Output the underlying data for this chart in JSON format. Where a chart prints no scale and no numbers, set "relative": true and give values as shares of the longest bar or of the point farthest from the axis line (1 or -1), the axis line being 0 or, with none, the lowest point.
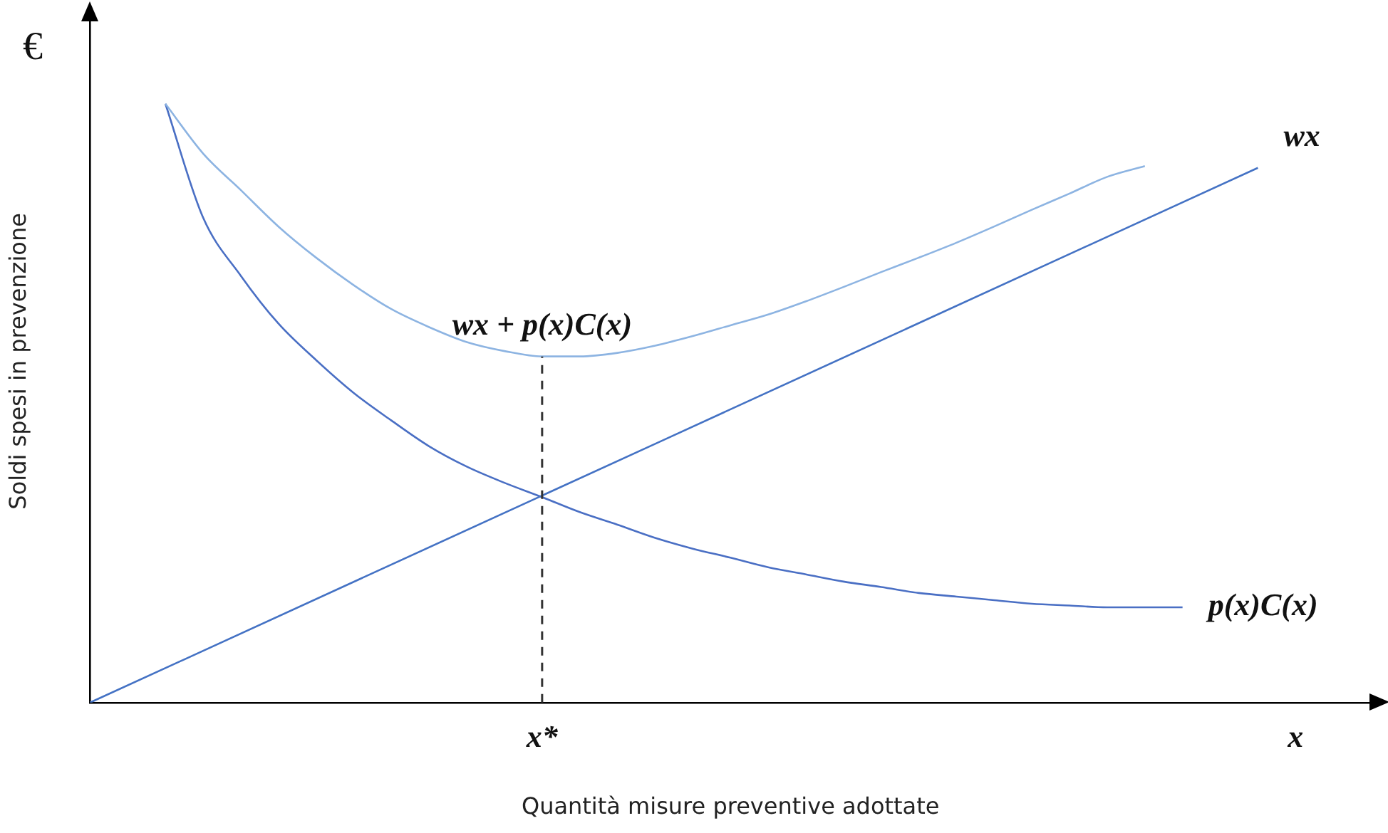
{
  "chart_data": {
    "type": "line",
    "relative": true,
    "xlabel": "Quantità misure preventive adottate",
    "ylabel": "Soldi spesi in prevenzione",
    "annotations": [
      "€"
    ],
    "categories": [
      null,
      null,
      null,
      null,
      null,
      null,
      null,
      null,
      null,
      null,
      null,
      null,
      "x*",
      null,
      null,
      null,
      null,
      null,
      null,
      null,
      null,
      null,
      null,
      null,
      null,
      null,
      null,
      null,
      null,
      null,
      null,
      null,
      "x",
      null,
      null
    ],
    "series": [
      {
        "name": "wx",
        "color": "#4472c4",
        "values": [
          0,
          null,
          null,
          null,
          null,
          null,
          null,
          null,
          null,
          null,
          null,
          null,
          null,
          null,
          null,
          null,
          null,
          null,
          null,
          null,
          null,
          null,
          null,
          null,
          null,
          null,
          null,
          null,
          null,
          null,
          null,
          0.893,
          null,
          null,
          null
        ]
      },
      {
        "name": "wx + p(x)C(x)",
        "color": "#8db4e2",
        "values": [
          null,
          null,
          1,
          0.917,
          0.856,
          0.795,
          0.743,
          0.697,
          0.657,
          0.627,
          0.602,
          0.587,
          0.578,
          0.578,
          0.584,
          0.596,
          0.612,
          0.63,
          0.648,
          0.67,
          0.694,
          0.719,
          0.743,
          0.768,
          0.795,
          0.823,
          0.85,
          0.878,
          0.896,
          null,
          null,
          null,
          null,
          null,
          null
        ]
      },
      {
        "name": "p(x)C(x)",
        "color": "#4a6fc4",
        "values": [
          null,
          null,
          1,
          0.81,
          0.713,
          0.633,
          0.572,
          0.517,
          0.471,
          0.428,
          0.394,
          0.367,
          0.343,
          0.318,
          0.297,
          0.275,
          0.257,
          0.242,
          0.226,
          0.214,
          0.202,
          0.193,
          0.183,
          0.177,
          0.171,
          0.165,
          0.162,
          0.159,
          0.159,
          0.159,
          null,
          null,
          null,
          null,
          null
        ]
      }
    ],
    "ref_lines": [
      {
        "axis": "x",
        "value": "x*",
        "line_style": "dashed",
        "color": "#333333"
      }
    ],
    "legend": false,
    "grid": false,
    "marker": "none",
    "line_style": "solid"
  }
}
